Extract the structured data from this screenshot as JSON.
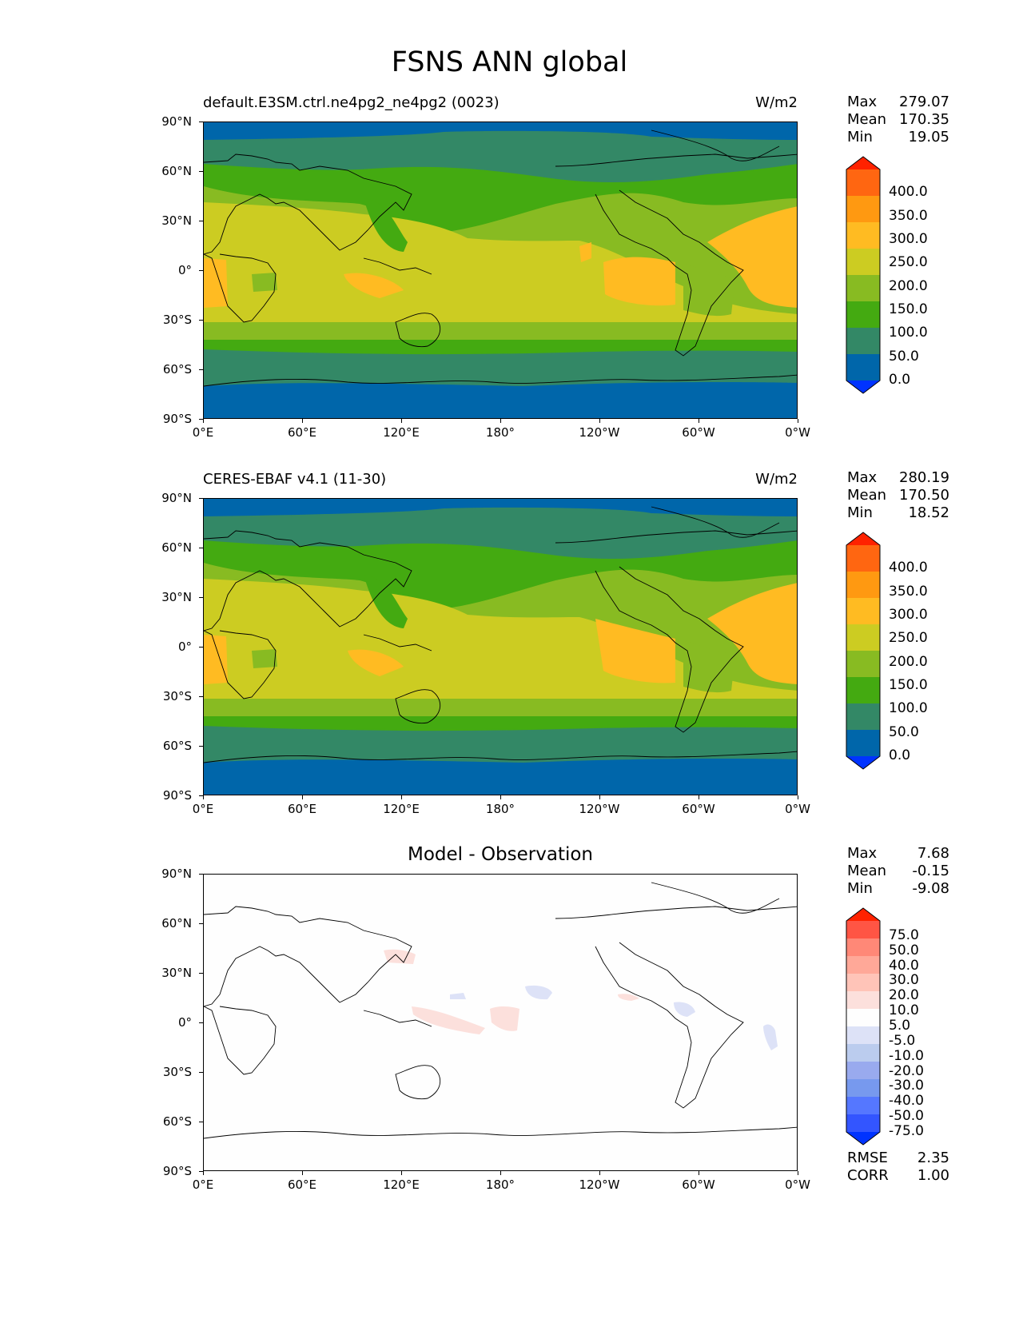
{
  "title": "FSNS ANN global",
  "units": "W/m2",
  "axes": {
    "lat_labels": [
      "90°N",
      "60°N",
      "30°N",
      "0°",
      "30°S",
      "60°S",
      "90°S"
    ],
    "lon_labels": [
      "0°E",
      "60°E",
      "120°E",
      "180°",
      "120°W",
      "60°W",
      "0°W"
    ]
  },
  "colors": {
    "abs_levels": [
      "#0033ff",
      "#0066aa",
      "#338866",
      "#44aa11",
      "#88bb22",
      "#cccc22",
      "#ffbb22",
      "#ff9911",
      "#ff6611",
      "#ff2200"
    ],
    "diff_levels": [
      "#0033ff",
      "#3355ff",
      "#5577ff",
      "#7799ee",
      "#99aaee",
      "#bbccee",
      "#dde2f7",
      "#fefefe",
      "#fce0dc",
      "#ffc4b8",
      "#ffa898",
      "#ff8877",
      "#ff5544",
      "#ff2200"
    ],
    "land_outline": "#000000"
  },
  "panels": [
    {
      "id": "test",
      "left_title": "default.E3SM.ctrl.ne4pg2_ne4pg2 (0023)",
      "right_title": "W/m2",
      "stats": {
        "max_label": "Max",
        "max": "279.07",
        "mean_label": "Mean",
        "mean": "170.35",
        "min_label": "Min",
        "min": "19.05"
      },
      "colorbar": [
        "400.0",
        "350.0",
        "300.0",
        "250.0",
        "200.0",
        "150.0",
        "100.0",
        "50.0",
        "0.0"
      ]
    },
    {
      "id": "reference",
      "left_title": "CERES-EBAF v4.1 (11-30)",
      "right_title": "W/m2",
      "stats": {
        "max_label": "Max",
        "max": "280.19",
        "mean_label": "Mean",
        "mean": "170.50",
        "min_label": "Min",
        "min": "18.52"
      },
      "colorbar": [
        "400.0",
        "350.0",
        "300.0",
        "250.0",
        "200.0",
        "150.0",
        "100.0",
        "50.0",
        "0.0"
      ]
    },
    {
      "id": "difference",
      "center_title": "Model - Observation",
      "stats": {
        "max_label": "Max",
        "max": "7.68",
        "mean_label": "Mean",
        "mean": "-0.15",
        "min_label": "Min",
        "min": "-9.08"
      },
      "colorbar": [
        "75.0",
        "50.0",
        "40.0",
        "30.0",
        "20.0",
        "10.0",
        "5.0",
        "-5.0",
        "-10.0",
        "-20.0",
        "-30.0",
        "-40.0",
        "-50.0",
        "-75.0"
      ],
      "rmse_label": "RMSE",
      "rmse": "2.35",
      "corr_label": "CORR",
      "corr": "1.00"
    }
  ]
}
